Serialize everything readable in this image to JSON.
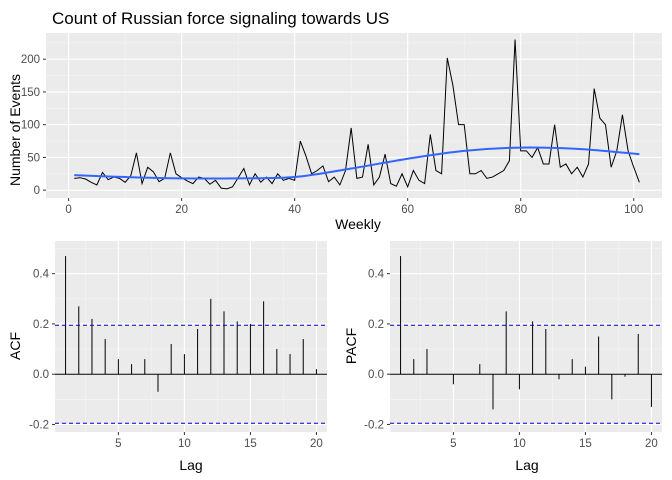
{
  "colors": {
    "panel_bg": "#ebebeb",
    "grid_major": "#ffffff",
    "grid_minor": "#f5f5f5",
    "series_line": "#000000",
    "smooth_line": "#3366ff",
    "ci_line": "#0000cc",
    "tick_text": "#4d4d4d"
  },
  "chart_data": [
    {
      "type": "line",
      "title": "Count of Russian force signaling towards US",
      "xlabel": "Weekly",
      "ylabel": "Number of Events",
      "xlim": [
        -4,
        105
      ],
      "ylim": [
        -12,
        240
      ],
      "xticks": [
        0,
        20,
        40,
        60,
        80,
        100
      ],
      "yticks": [
        0,
        50,
        100,
        150,
        200
      ],
      "grid": true,
      "x": [
        1,
        2,
        3,
        4,
        5,
        6,
        7,
        8,
        9,
        10,
        11,
        12,
        13,
        14,
        15,
        16,
        17,
        18,
        19,
        20,
        21,
        22,
        23,
        24,
        25,
        26,
        27,
        28,
        29,
        30,
        31,
        32,
        33,
        34,
        35,
        36,
        37,
        38,
        39,
        40,
        41,
        42,
        43,
        44,
        45,
        46,
        47,
        48,
        49,
        50,
        51,
        52,
        53,
        54,
        55,
        56,
        57,
        58,
        59,
        60,
        61,
        62,
        63,
        64,
        65,
        66,
        67,
        68,
        69,
        70,
        71,
        72,
        73,
        74,
        75,
        76,
        77,
        78,
        79,
        80,
        81,
        82,
        83,
        84,
        85,
        86,
        87,
        88,
        89,
        90,
        91,
        92,
        93,
        94,
        95,
        96,
        97,
        98,
        99,
        100,
        101
      ],
      "values": [
        18,
        19,
        17,
        12,
        8,
        27,
        16,
        20,
        18,
        12,
        22,
        57,
        10,
        35,
        28,
        13,
        18,
        57,
        25,
        19,
        14,
        10,
        20,
        18,
        9,
        15,
        3,
        2,
        5,
        19,
        33,
        8,
        25,
        12,
        20,
        10,
        25,
        15,
        18,
        15,
        75,
        52,
        25,
        30,
        37,
        13,
        20,
        8,
        30,
        95,
        18,
        20,
        70,
        8,
        20,
        55,
        10,
        6,
        25,
        5,
        30,
        15,
        10,
        85,
        30,
        25,
        202,
        160,
        100,
        100,
        25,
        25,
        30,
        18,
        20,
        25,
        30,
        45,
        230,
        60,
        60,
        50,
        65,
        40,
        40,
        100,
        35,
        40,
        25,
        35,
        20,
        40,
        155,
        110,
        100,
        35,
        60,
        115,
        60,
        35,
        12
      ],
      "smooth": {
        "x": [
          1,
          10,
          20,
          30,
          40,
          50,
          60,
          70,
          80,
          90,
          101
        ],
        "values": [
          23,
          20,
          18,
          18,
          20,
          33,
          48,
          60,
          65,
          63,
          55
        ]
      }
    },
    {
      "type": "bar",
      "title": "",
      "xlabel": "Lag",
      "ylabel": "ACF",
      "xlim": [
        0.2,
        20.8
      ],
      "ylim": [
        -0.23,
        0.53
      ],
      "xticks": [
        5,
        10,
        15,
        20
      ],
      "yticks": [
        -0.2,
        0.0,
        0.2,
        0.4
      ],
      "grid": true,
      "ci": 0.195,
      "categories": [
        1,
        2,
        3,
        4,
        5,
        6,
        7,
        8,
        9,
        10,
        11,
        12,
        13,
        14,
        15,
        16,
        17,
        18,
        19,
        20
      ],
      "values": [
        0.47,
        0.27,
        0.22,
        0.14,
        0.06,
        0.04,
        0.06,
        -0.07,
        0.12,
        0.08,
        0.18,
        0.3,
        0.25,
        0.21,
        0.2,
        0.29,
        0.1,
        0.08,
        0.14,
        0.02
      ]
    },
    {
      "type": "bar",
      "title": "",
      "xlabel": "Lag",
      "ylabel": "PACF",
      "xlim": [
        0.2,
        20.8
      ],
      "ylim": [
        -0.23,
        0.53
      ],
      "xticks": [
        5,
        10,
        15,
        20
      ],
      "yticks": [
        -0.2,
        0.0,
        0.2,
        0.4
      ],
      "grid": true,
      "ci": 0.195,
      "categories": [
        1,
        2,
        3,
        4,
        5,
        6,
        7,
        8,
        9,
        10,
        11,
        12,
        13,
        14,
        15,
        16,
        17,
        18,
        19,
        20
      ],
      "values": [
        0.47,
        0.06,
        0.1,
        0.0,
        -0.04,
        0.0,
        0.04,
        -0.14,
        0.25,
        -0.06,
        0.21,
        0.18,
        -0.02,
        0.06,
        0.03,
        0.15,
        -0.1,
        -0.01,
        0.16,
        -0.13
      ]
    }
  ]
}
